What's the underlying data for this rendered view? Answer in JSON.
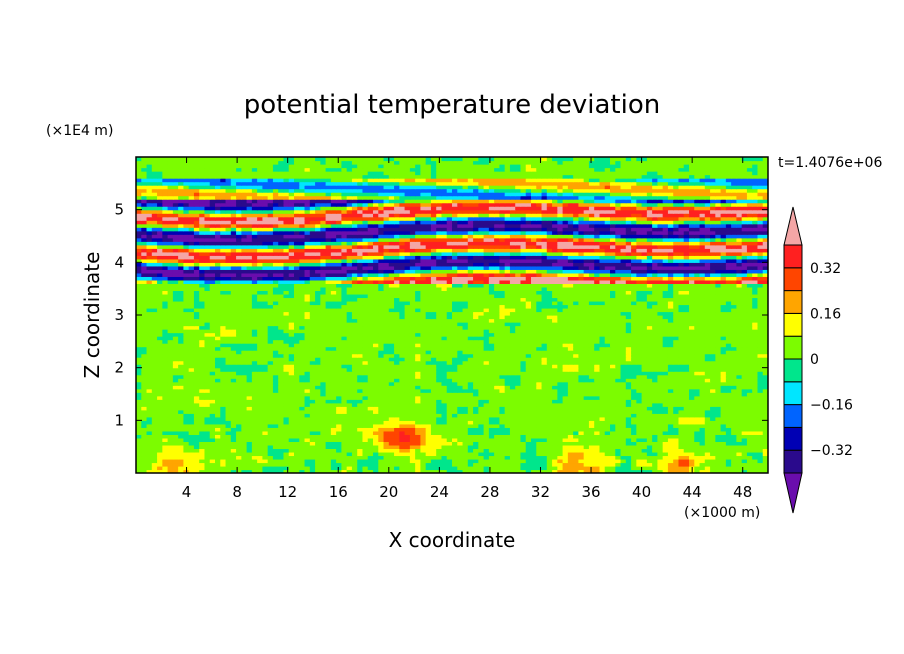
{
  "chart_data": {
    "type": "heatmap",
    "title": "potential temperature deviation",
    "xlabel": "X coordinate",
    "ylabel": "Z coordinate",
    "x_unit": "(×1000 m)",
    "y_unit": "(×1E4 m)",
    "time_label": "t=1.4076e+06",
    "xlim": [
      0,
      50
    ],
    "ylim": [
      0,
      6
    ],
    "x_ticks": [
      4,
      8,
      12,
      16,
      20,
      24,
      28,
      32,
      36,
      40,
      44,
      48
    ],
    "y_ticks": [
      1,
      2,
      3,
      4,
      5
    ],
    "colorbar": {
      "levels": [
        -0.4,
        -0.32,
        -0.24,
        -0.16,
        -0.08,
        0,
        0.08,
        0.16,
        0.24,
        0.32,
        0.4
      ],
      "colors": [
        "#6a0dad",
        "#2a0a8c",
        "#0000b4",
        "#0064ff",
        "#00e6ff",
        "#00e68c",
        "#7cfc00",
        "#ffff00",
        "#ffa500",
        "#ff4500",
        "#ff2020",
        "#f4a6a6"
      ],
      "labels": [
        "0.32",
        "0.16",
        "0",
        "−0.16",
        "−0.32"
      ],
      "label_values": [
        0.32,
        0.16,
        0,
        -0.16,
        -0.32
      ]
    },
    "bands": [
      {
        "z": [
          0,
          0.8
        ],
        "mean": 0.02,
        "amp": 0.06,
        "noise": 0.05
      },
      {
        "z": [
          0.8,
          3.6
        ],
        "mean": 0.03,
        "amp": 0.05,
        "noise": 0.04
      },
      {
        "z": [
          3.6,
          5.2
        ],
        "mean": 0,
        "amp": 0.42,
        "noise": 0.1
      },
      {
        "z": [
          5.2,
          5.6
        ],
        "mean": 0,
        "amp": 0.2,
        "noise": 0.06
      },
      {
        "z": [
          5.6,
          6.0
        ],
        "mean": 0.03,
        "amp": 0.05,
        "noise": 0.03
      }
    ],
    "features": [
      {
        "x": 21,
        "z": 0.7,
        "value": 0.3
      },
      {
        "x": 35,
        "z": 0.15,
        "value": 0.2
      },
      {
        "x": 43,
        "z": 0.15,
        "value": 0.2
      },
      {
        "x": 3,
        "z": 0.2,
        "value": 0.15
      }
    ]
  }
}
